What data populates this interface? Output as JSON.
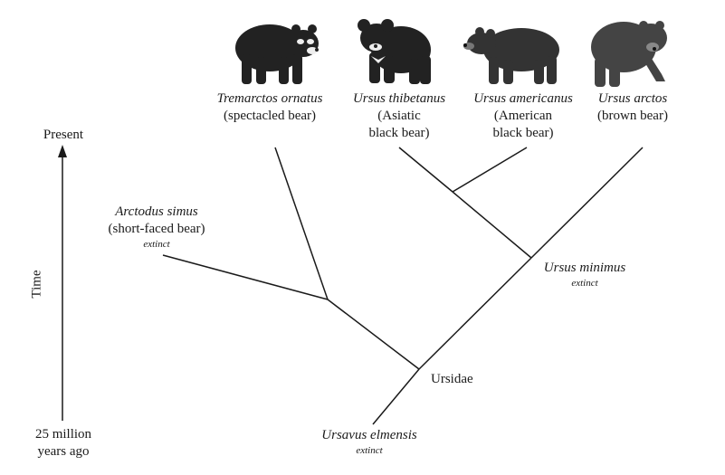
{
  "axis": {
    "top_label": "Present",
    "bottom_label_line1": "25 million",
    "bottom_label_line2": "years ago",
    "side_label": "Time"
  },
  "taxa": {
    "tremarctos": {
      "name": "Tremarctos ornatus",
      "common": "(spectacled bear)"
    },
    "thibetanus": {
      "name": "Ursus thibetanus",
      "common_line1": "(Asiatic",
      "common_line2": "black bear)"
    },
    "americanus": {
      "name": "Ursus americanus",
      "common_line1": "(American",
      "common_line2": "black bear)"
    },
    "arctos": {
      "name": "Ursus arctos",
      "common": "(brown bear)"
    },
    "arctodus": {
      "name": "Arctodus simus",
      "common": "(short-faced bear)",
      "status": "extinct"
    },
    "minimus": {
      "name": "Ursus minimus",
      "status": "extinct"
    },
    "ursidae": {
      "name": "Ursidae"
    },
    "ursavus": {
      "name": "Ursavus elmensis",
      "status": "extinct"
    }
  },
  "icons": [
    "spectacled-bear-icon",
    "asiatic-black-bear-icon",
    "american-black-bear-icon",
    "brown-bear-icon",
    "time-arrow-icon"
  ]
}
